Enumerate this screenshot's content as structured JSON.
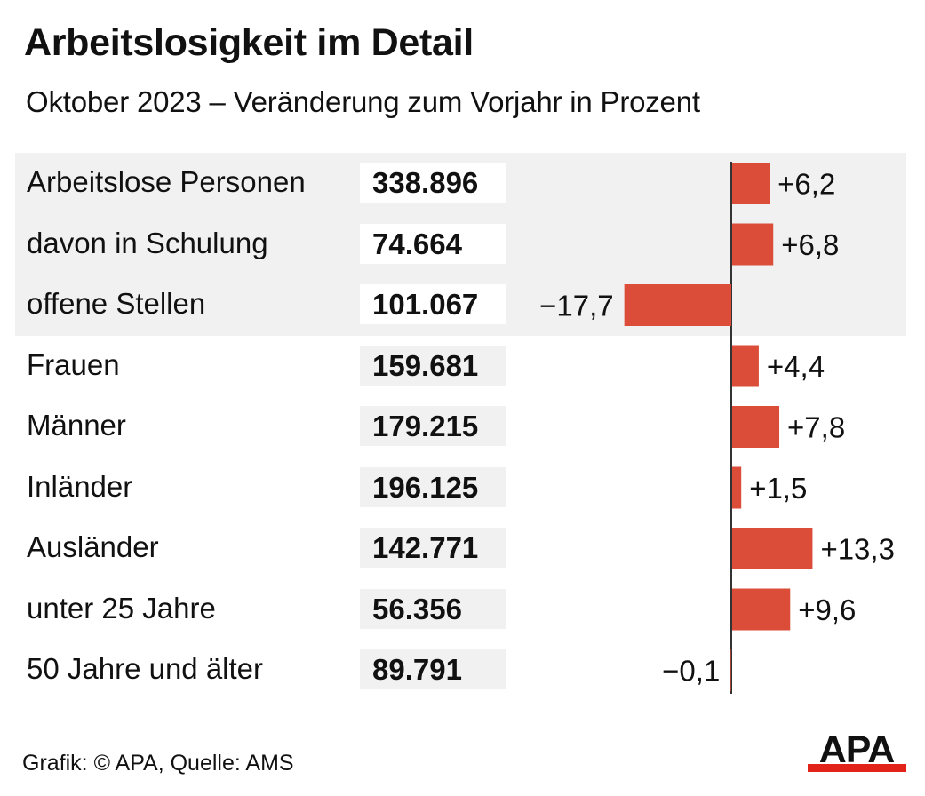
{
  "title": "Arbeitslosigkeit im Detail",
  "subtitle": "Oktober 2023 – Veränderung zum Vorjahr in Prozent",
  "source": "Grafik: © APA, Quelle: AMS",
  "logo_text": "APA",
  "colors": {
    "bar": "#db4d38",
    "shade": "#f1f1f1",
    "axis": "#333333",
    "logo_red": "#e2231a"
  },
  "chart_data": {
    "type": "bar",
    "orientation": "horizontal",
    "title": "Arbeitslosigkeit im Detail",
    "subtitle": "Oktober 2023 – Veränderung zum Vorjahr in Prozent",
    "categories": [
      "Arbeitslose Personen",
      "davon in Schulung",
      "offene Stellen",
      "Frauen",
      "Männer",
      "Inländer",
      "Ausländer",
      "unter 25 Jahre",
      "50 Jahre und älter"
    ],
    "absolute_values": [
      "338.896",
      "74.664",
      "101.067",
      "159.681",
      "179.215",
      "196.125",
      "142.771",
      "56.356",
      "89.791"
    ],
    "values": [
      6.2,
      6.8,
      -17.7,
      4.4,
      7.8,
      1.5,
      13.3,
      9.6,
      -0.1
    ],
    "value_labels": [
      "+6,2",
      "+6,8",
      "−17,7",
      "+4,4",
      "+7,8",
      "+1,5",
      "+13,3",
      "+9,6",
      "−0,1"
    ],
    "highlighted_rows": [
      0,
      1,
      2
    ],
    "legend": "none",
    "grid": false
  }
}
